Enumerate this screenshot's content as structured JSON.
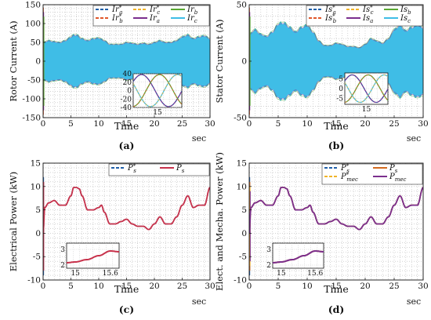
{
  "panels": [
    {
      "id": "a",
      "caption": "(a)",
      "ylabel": "Rotor Current (A)",
      "xlabel": "Time",
      "xunit": "sec",
      "xlim": [
        0,
        30
      ],
      "ylim": [
        -150,
        150
      ],
      "xticks": [
        0,
        5,
        10,
        15,
        20,
        25,
        30
      ],
      "yticks": [
        -150,
        -100,
        -50,
        0,
        50,
        100,
        150
      ],
      "legend": {
        "cols": 3,
        "entries": [
          {
            "main": "Ir",
            "sub": "a",
            "sup": "*",
            "color": "#1f5fa8",
            "dash": true
          },
          {
            "main": "Ir",
            "sub": "c",
            "sup": "*",
            "color": "#f0b429",
            "dash": true
          },
          {
            "main": "Ir",
            "sub": "b",
            "sup": "",
            "color": "#5aa832",
            "dash": false
          },
          {
            "main": "Ir",
            "sub": "b",
            "sup": "*",
            "color": "#e0572a",
            "dash": true
          },
          {
            "main": "Ir",
            "sub": "a",
            "sup": "",
            "color": "#7b2f8e",
            "dash": false
          },
          {
            "main": "Ir",
            "sub": "c",
            "sup": "",
            "color": "#3fbde6",
            "dash": false
          }
        ]
      },
      "inset": {
        "xticks": [
          "15"
        ],
        "yticks": [
          40,
          20,
          0,
          -20,
          -40
        ],
        "ylim": [
          -40,
          40
        ]
      }
    },
    {
      "id": "b",
      "caption": "(b)",
      "ylabel": "Stator Current (A)",
      "xlabel": "Time",
      "xunit": "sec",
      "xlim": [
        0,
        30
      ],
      "ylim": [
        -50,
        50
      ],
      "xticks": [
        0,
        5,
        10,
        15,
        20,
        25,
        30
      ],
      "yticks": [
        -50,
        0,
        50
      ],
      "legend": {
        "cols": 3,
        "entries": [
          {
            "main": "Is",
            "sub": "a",
            "sup": "*",
            "color": "#1f5fa8",
            "dash": true
          },
          {
            "main": "Is",
            "sub": "c",
            "sup": "*",
            "color": "#f0b429",
            "dash": true
          },
          {
            "main": "Is",
            "sub": "b",
            "sup": "",
            "color": "#5aa832",
            "dash": false
          },
          {
            "main": "Is",
            "sub": "b",
            "sup": "*",
            "color": "#e0572a",
            "dash": true
          },
          {
            "main": "Is",
            "sub": "a",
            "sup": "",
            "color": "#7b2f8e",
            "dash": false
          },
          {
            "main": "Is",
            "sub": "c",
            "sup": "",
            "color": "#3fbde6",
            "dash": false
          }
        ]
      },
      "inset": {
        "xticks": [
          "15"
        ],
        "yticks": [
          5,
          0,
          -5
        ],
        "ylim": [
          -8,
          8
        ]
      }
    },
    {
      "id": "c",
      "caption": "(c)",
      "ylabel": "Electrical Power (kW)",
      "xlabel": "Time",
      "xunit": "sec",
      "xlim": [
        0,
        30
      ],
      "ylim": [
        -10,
        15
      ],
      "xticks": [
        0,
        5,
        10,
        15,
        20,
        25,
        30
      ],
      "yticks": [
        -10,
        -5,
        0,
        5,
        10,
        15
      ],
      "legend": {
        "cols": 2,
        "entries": [
          {
            "main": "P",
            "sub": "s",
            "sup": "*",
            "color": "#1f5fa8",
            "dash": true
          },
          {
            "main": "P",
            "sub": "s",
            "sup": "",
            "color": "#c8324b",
            "dash": false
          }
        ]
      },
      "inset": {
        "xticks": [
          "15",
          "15.6"
        ],
        "yticks": [
          3,
          2
        ],
        "ylim": [
          1.8,
          3.4
        ]
      }
    },
    {
      "id": "d",
      "caption": "(d)",
      "ylabel": "Elect. and Mecha. Power (kW)",
      "xlabel": "Time",
      "xunit": "sec",
      "xlim": [
        0,
        30
      ],
      "ylim": [
        -10,
        15
      ],
      "xticks": [
        0,
        5,
        10,
        15,
        20,
        25,
        30
      ],
      "yticks": [
        -10,
        -5,
        0,
        5,
        10,
        15
      ],
      "legend": {
        "cols": 2,
        "entries": [
          {
            "main": "P",
            "sub": "s",
            "sup": "*",
            "color": "#1f5fa8",
            "dash": true
          },
          {
            "main": "P",
            "sub": "s",
            "sup": "",
            "color": "#d2691e",
            "dash": false
          },
          {
            "main": "P",
            "sub": "mec",
            "sup": "*",
            "color": "#f0b429",
            "dash": true
          },
          {
            "main": "P",
            "sub": "mec",
            "sup": "",
            "color": "#7b2f8e",
            "dash": false
          }
        ]
      },
      "inset": {
        "xticks": [
          "15",
          "15.6"
        ],
        "yticks": [
          3,
          2
        ],
        "ylim": [
          1.8,
          3.4
        ]
      }
    }
  ],
  "chart_data": [
    {
      "type": "line",
      "panel": "a",
      "ylabel": "Rotor Current (A)",
      "xlabel": "Time",
      "xlim": [
        0,
        30
      ],
      "ylim": [
        -150,
        150
      ],
      "description_of_series": "three-phase rotor currents Ir_a, Ir_b, Ir_c with references; amplitude envelope vs time",
      "envelope": {
        "x": [
          0,
          1,
          2,
          3,
          4,
          5,
          5.5,
          6,
          7,
          8,
          9,
          10,
          11,
          12,
          13,
          14,
          15,
          16,
          17,
          18,
          19,
          20,
          21,
          22,
          23,
          24,
          25,
          26,
          27,
          28,
          29,
          30
        ],
        "amplitude": [
          50,
          55,
          52,
          50,
          55,
          65,
          70,
          70,
          60,
          55,
          60,
          62,
          55,
          45,
          45,
          45,
          50,
          48,
          45,
          48,
          45,
          50,
          55,
          50,
          50,
          55,
          65,
          70,
          60,
          65,
          68,
          60
        ]
      },
      "inset": {
        "xlim_label": "15",
        "ylim": [
          -40,
          40
        ],
        "series": [
          {
            "name": "Ir_a",
            "phase_deg": 0
          },
          {
            "name": "Ir_b",
            "phase_deg": -120
          },
          {
            "name": "Ir_c",
            "phase_deg": 120
          }
        ],
        "amplitude": 38
      }
    },
    {
      "type": "line",
      "panel": "b",
      "ylabel": "Stator Current (A)",
      "xlabel": "Time",
      "xlim": [
        0,
        30
      ],
      "ylim": [
        -50,
        50
      ],
      "description_of_series": "three-phase stator currents Is_a, Is_b, Is_c with references; amplitude envelope vs time",
      "envelope": {
        "x": [
          0,
          1,
          2,
          3,
          4,
          5,
          5.5,
          6,
          7,
          8,
          9,
          10,
          11,
          12,
          13,
          14,
          15,
          16,
          17,
          18,
          19,
          20,
          21,
          22,
          23,
          24,
          25,
          26,
          27,
          28,
          29,
          30
        ],
        "amplitude": [
          24,
          28,
          24,
          22,
          26,
          33,
          34,
          34,
          30,
          26,
          30,
          32,
          26,
          18,
          14,
          14,
          16,
          15,
          13,
          13,
          12,
          15,
          20,
          18,
          16,
          20,
          28,
          32,
          27,
          30,
          32,
          30
        ]
      },
      "inset": {
        "xlim_label": "15",
        "ylim": [
          -8,
          8
        ],
        "series": [
          {
            "name": "Is_a",
            "phase_deg": 0
          },
          {
            "name": "Is_b",
            "phase_deg": -120
          },
          {
            "name": "Is_c",
            "phase_deg": 120
          }
        ],
        "amplitude": 7
      }
    },
    {
      "type": "line",
      "panel": "c",
      "ylabel": "Electrical Power (kW)",
      "xlabel": "Time",
      "xlim": [
        0,
        30
      ],
      "ylim": [
        -10,
        15
      ],
      "series": [
        {
          "name": "P_s*",
          "color": "#1f5fa8"
        },
        {
          "name": "P_s",
          "color": "#c8324b"
        }
      ],
      "x": [
        0,
        0.3,
        1,
        2,
        3,
        4,
        5,
        5.5,
        6,
        6.5,
        7,
        8,
        9,
        10,
        10.5,
        11,
        12,
        13,
        14,
        15,
        16,
        17,
        18,
        19,
        20,
        21,
        22,
        23,
        24,
        25,
        26,
        27,
        28,
        29,
        30
      ],
      "values": [
        0,
        5.5,
        6.5,
        7,
        6,
        6,
        8,
        9.8,
        9.8,
        9.5,
        8,
        5,
        5,
        5.5,
        6,
        4.5,
        2,
        2,
        2.5,
        3,
        2,
        1.5,
        1.5,
        0.8,
        2,
        3.5,
        2,
        2,
        3.5,
        6,
        8,
        5.5,
        6,
        6,
        9.8
      ],
      "inset": {
        "xticks": [
          "15",
          "15.6"
        ],
        "ylim": [
          1.8,
          3.4
        ],
        "x": [
          14.85,
          15,
          15.2,
          15.4,
          15.6,
          15.75
        ],
        "values": [
          2.15,
          2.2,
          2.35,
          2.6,
          2.9,
          2.85
        ]
      }
    },
    {
      "type": "line",
      "panel": "d",
      "ylabel": "Elect. and Mecha. Power (kW)",
      "xlabel": "Time",
      "xlim": [
        0,
        30
      ],
      "ylim": [
        -10,
        15
      ],
      "series": [
        {
          "name": "P_s*",
          "color": "#1f5fa8"
        },
        {
          "name": "P_s",
          "color": "#d2691e"
        },
        {
          "name": "P_mec*",
          "color": "#f0b429"
        },
        {
          "name": "P_mec",
          "color": "#7b2f8e"
        }
      ],
      "x": [
        0,
        0.3,
        1,
        2,
        3,
        4,
        5,
        5.5,
        6,
        6.5,
        7,
        8,
        9,
        10,
        10.5,
        11,
        12,
        13,
        14,
        15,
        16,
        17,
        18,
        19,
        20,
        21,
        22,
        23,
        24,
        25,
        26,
        27,
        28,
        29,
        30
      ],
      "values": [
        0,
        5.5,
        6.5,
        7,
        6,
        6,
        8,
        9.8,
        9.8,
        9.5,
        8,
        5,
        5,
        5.5,
        6,
        4.5,
        2,
        2,
        2.5,
        3,
        2,
        1.5,
        1.5,
        0.8,
        2,
        3.5,
        2,
        2,
        3.5,
        6,
        8,
        5.5,
        6,
        6,
        9.8
      ],
      "inset": {
        "xticks": [
          "15",
          "15.6"
        ],
        "ylim": [
          1.8,
          3.4
        ],
        "x": [
          14.85,
          15,
          15.2,
          15.4,
          15.6,
          15.75
        ],
        "values": [
          2.15,
          2.2,
          2.35,
          2.6,
          2.9,
          2.85
        ]
      }
    }
  ]
}
